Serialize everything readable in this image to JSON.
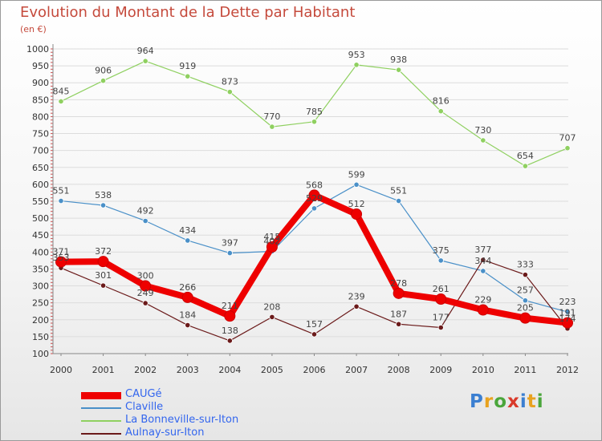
{
  "title": "Evolution du Montant de la Dette par Habitant",
  "subtitle": "(en €)",
  "logo": {
    "text": "Proxiti",
    "letters": [
      {
        "ch": "P",
        "color": "#3b7fd1"
      },
      {
        "ch": "r",
        "color": "#e8a21f"
      },
      {
        "ch": "o",
        "color": "#4aa63b"
      },
      {
        "ch": "x",
        "color": "#d93a2b"
      },
      {
        "ch": "i",
        "color": "#3b7fd1"
      },
      {
        "ch": "t",
        "color": "#e8a21f"
      },
      {
        "ch": "i",
        "color": "#4aa63b"
      }
    ]
  },
  "chart_data": {
    "type": "line",
    "x": [
      "2000",
      "2001",
      "2002",
      "2003",
      "2004",
      "2005",
      "2006",
      "2007",
      "2008",
      "2009",
      "2010",
      "2011",
      "2012"
    ],
    "ylim": [
      100,
      1000
    ],
    "yticks": [
      100,
      150,
      200,
      250,
      300,
      350,
      400,
      450,
      500,
      550,
      600,
      650,
      700,
      750,
      800,
      850,
      900,
      950,
      1000
    ],
    "grid": true,
    "legend_position": "bottom-left",
    "series": [
      {
        "name": "CAUGé",
        "color": "#ee0000",
        "values": [
          371,
          372,
          300,
          266,
          211,
          415,
          568,
          512,
          278,
          261,
          229,
          205,
          191
        ]
      },
      {
        "name": "Claville",
        "color": "#4a90c8",
        "values": [
          551,
          538,
          492,
          434,
          397,
          402,
          529,
          599,
          551,
          375,
          344,
          257,
          223
        ]
      },
      {
        "name": "La Bonneville-sur-Iton",
        "color": "#8fd060",
        "values": [
          845,
          906,
          964,
          919,
          873,
          770,
          785,
          953,
          938,
          816,
          730,
          654,
          707
        ]
      },
      {
        "name": "Aulnay-sur-Iton",
        "color": "#6b1a1a",
        "values": [
          353,
          301,
          249,
          184,
          138,
          208,
          157,
          239,
          187,
          177,
          377,
          333,
          174
        ]
      }
    ],
    "labels_shown": [
      [
        "371",
        "372",
        "300",
        "266",
        "211",
        "415",
        "568",
        "512",
        "278",
        "261",
        "229",
        "205",
        "191"
      ],
      [
        "551",
        "538",
        "492",
        "434",
        "397",
        "402",
        "529",
        "599",
        "551",
        "375",
        "344",
        "257",
        "223"
      ],
      [
        "845",
        "906",
        "964",
        "919",
        "873",
        "770",
        "785",
        "953",
        "938",
        "816",
        "730",
        "654",
        "707"
      ],
      [
        "353",
        "301",
        "249",
        "184",
        "138",
        "208",
        "157",
        "239",
        "187",
        "177",
        "377",
        "333",
        "174"
      ]
    ]
  }
}
